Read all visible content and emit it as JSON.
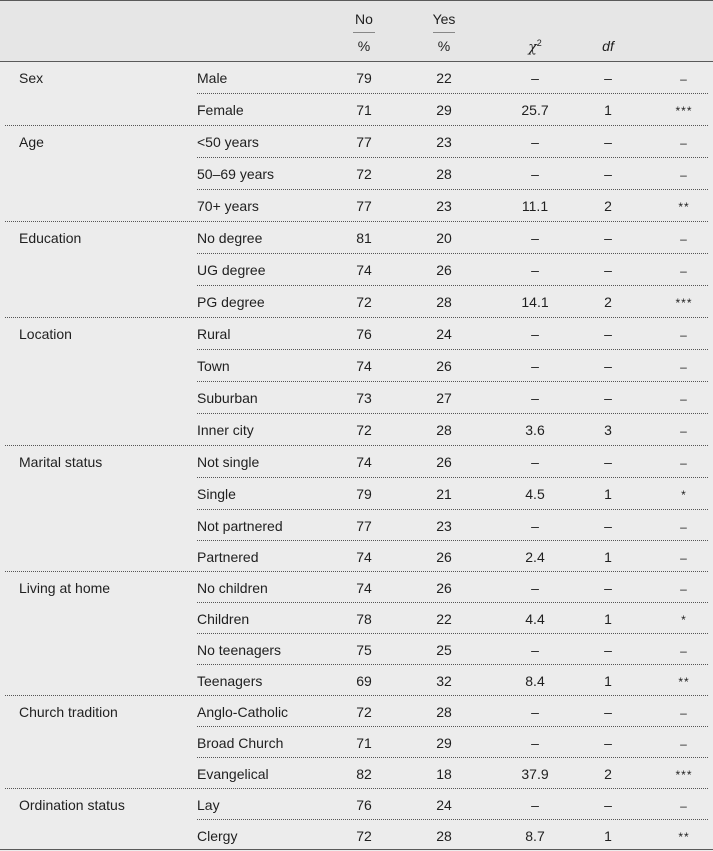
{
  "header": {
    "no_label": "No",
    "yes_label": "Yes",
    "no_unit": "%",
    "yes_unit": "%",
    "chi_symbol": "χ",
    "chi_sup": "2",
    "df_label": "df"
  },
  "rows": [
    {
      "group": "Sex",
      "level": "Male",
      "no": "79",
      "yes": "22",
      "chi": "–",
      "df": "–",
      "sig": "–"
    },
    {
      "group": "",
      "level": "Female",
      "no": "71",
      "yes": "29",
      "chi": "25.7",
      "df": "1",
      "sig": "***"
    },
    {
      "group": "Age",
      "level": "<50 years",
      "no": "77",
      "yes": "23",
      "chi": "–",
      "df": "–",
      "sig": "–"
    },
    {
      "group": "",
      "level": "50–69 years",
      "no": "72",
      "yes": "28",
      "chi": "–",
      "df": "–",
      "sig": "–"
    },
    {
      "group": "",
      "level": "70+ years",
      "no": "77",
      "yes": "23",
      "chi": "11.1",
      "df": "2",
      "sig": "**"
    },
    {
      "group": "Education",
      "level": "No degree",
      "no": "81",
      "yes": "20",
      "chi": "–",
      "df": "–",
      "sig": "–"
    },
    {
      "group": "",
      "level": "UG degree",
      "no": "74",
      "yes": "26",
      "chi": "–",
      "df": "–",
      "sig": "–"
    },
    {
      "group": "",
      "level": "PG degree",
      "no": "72",
      "yes": "28",
      "chi": "14.1",
      "df": "2",
      "sig": "***"
    },
    {
      "group": "Location",
      "level": "Rural",
      "no": "76",
      "yes": "24",
      "chi": "–",
      "df": "–",
      "sig": "–"
    },
    {
      "group": "",
      "level": "Town",
      "no": "74",
      "yes": "26",
      "chi": "–",
      "df": "–",
      "sig": "–"
    },
    {
      "group": "",
      "level": "Suburban",
      "no": "73",
      "yes": "27",
      "chi": "–",
      "df": "–",
      "sig": "–"
    },
    {
      "group": "",
      "level": "Inner city",
      "no": "72",
      "yes": "28",
      "chi": "3.6",
      "df": "3",
      "sig": "–"
    },
    {
      "group": "Marital status",
      "level": "Not single",
      "no": "74",
      "yes": "26",
      "chi": "–",
      "df": "–",
      "sig": "–"
    },
    {
      "group": "",
      "level": "Single",
      "no": "79",
      "yes": "21",
      "chi": "4.5",
      "df": "1",
      "sig": "*"
    },
    {
      "group": "",
      "level": "Not partnered",
      "no": "77",
      "yes": "23",
      "chi": "–",
      "df": "–",
      "sig": "–"
    },
    {
      "group": "",
      "level": "Partnered",
      "no": "74",
      "yes": "26",
      "chi": "2.4",
      "df": "1",
      "sig": "–"
    },
    {
      "group": "Living at home",
      "level": "No children",
      "no": "74",
      "yes": "26",
      "chi": "–",
      "df": "–",
      "sig": "–"
    },
    {
      "group": "",
      "level": "Children",
      "no": "78",
      "yes": "22",
      "chi": "4.4",
      "df": "1",
      "sig": "*"
    },
    {
      "group": "",
      "level": "No teenagers",
      "no": "75",
      "yes": "25",
      "chi": "–",
      "df": "–",
      "sig": "–"
    },
    {
      "group": "",
      "level": "Teenagers",
      "no": "69",
      "yes": "32",
      "chi": "8.4",
      "df": "1",
      "sig": "**"
    },
    {
      "group": "Church tradition",
      "level": "Anglo-Catholic",
      "no": "72",
      "yes": "28",
      "chi": "–",
      "df": "–",
      "sig": "–"
    },
    {
      "group": "",
      "level": "Broad Church",
      "no": "71",
      "yes": "29",
      "chi": "–",
      "df": "–",
      "sig": "–"
    },
    {
      "group": "",
      "level": "Evangelical",
      "no": "82",
      "yes": "18",
      "chi": "37.9",
      "df": "2",
      "sig": "***"
    },
    {
      "group": "Ordination status",
      "level": "Lay",
      "no": "76",
      "yes": "24",
      "chi": "–",
      "df": "–",
      "sig": "–"
    },
    {
      "group": "",
      "level": "Clergy",
      "no": "72",
      "yes": "28",
      "chi": "8.7",
      "df": "1",
      "sig": "**"
    }
  ]
}
